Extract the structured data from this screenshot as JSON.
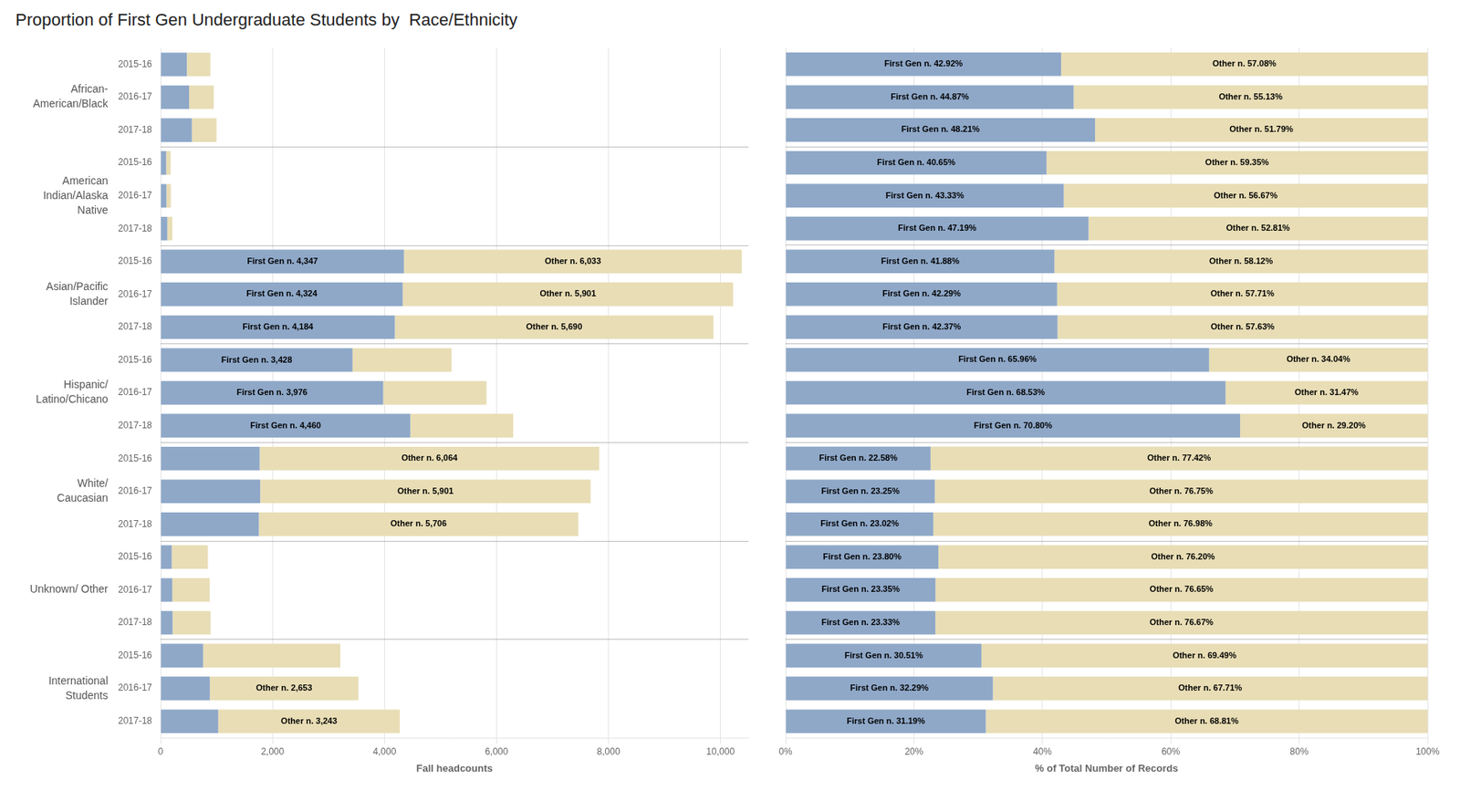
{
  "chart_data": [
    {
      "type": "bar",
      "title": "Proportion of First Gen Undergraduate Students by  Race/Ethnicity",
      "orientation": "horizontal",
      "stacked": true,
      "grid": true,
      "data_labels": true,
      "xlabel": "Fall headcounts",
      "groups": [
        {
          "label": "African-\nAmerican/Black",
          "categories": [
            "2015-16",
            "2016-17",
            "2017-18"
          ]
        },
        {
          "label": "American\nIndian/Alaska\nNative",
          "categories": [
            "2015-16",
            "2016-17",
            "2017-18"
          ]
        },
        {
          "label": "Asian/Pacific\nIslander",
          "categories": [
            "2015-16",
            "2016-17",
            "2017-18"
          ]
        },
        {
          "label": "Hispanic/\nLatino/Chicano",
          "categories": [
            "2015-16",
            "2016-17",
            "2017-18"
          ]
        },
        {
          "label": "White/\nCaucasian",
          "categories": [
            "2015-16",
            "2016-17",
            "2017-18"
          ]
        },
        {
          "label": "Unknown/ Other",
          "categories": [
            "2015-16",
            "2016-17",
            "2017-18"
          ]
        },
        {
          "label": "International\nStudents",
          "categories": [
            "2015-16",
            "2016-17",
            "2017-18"
          ]
        }
      ],
      "xlim": [
        0,
        10500
      ],
      "xticks": [
        0,
        {
          "value": 2000,
          "label": "2,000"
        },
        {
          "value": 4000,
          "label": "4,000"
        },
        {
          "value": 6000,
          "label": "6,000"
        },
        {
          "value": 8000,
          "label": "8,000"
        },
        {
          "value": 10000,
          "label": "10,000"
        }
      ],
      "series": [
        {
          "color": "#8fa8c8",
          "values": [
            470,
            510,
            560,
            100,
            105,
            120,
            4347,
            4324,
            4184,
            3428,
            3976,
            4460,
            1770,
            1780,
            1755,
            200,
            210,
            215,
            760,
            880,
            1030
          ],
          "value_labels": [
            null,
            null,
            null,
            null,
            null,
            null,
            "First Gen n. 4,347",
            "First Gen n. 4,324",
            "First Gen n. 4,184",
            "First Gen n. 3,428",
            "First Gen n. 3,976",
            "First Gen n. 4,460",
            null,
            null,
            null,
            null,
            null,
            null,
            null,
            null,
            null
          ]
        },
        {
          "color": "#e8ddb5",
          "values": [
            420,
            440,
            440,
            80,
            80,
            90,
            6033,
            5901,
            5690,
            1770,
            1845,
            1838,
            6064,
            5901,
            5706,
            645,
            668,
            678,
            2450,
            2653,
            3243
          ],
          "value_labels": [
            null,
            null,
            null,
            null,
            null,
            null,
            "Other n. 6,033",
            "Other n. 5,901",
            "Other n. 5,690",
            null,
            null,
            null,
            "Other n. 6,064",
            "Other n. 5,901",
            "Other n. 5,706",
            null,
            null,
            null,
            null,
            "Other n. 2,653",
            "Other n. 3,243"
          ]
        }
      ]
    },
    {
      "type": "bar",
      "orientation": "horizontal",
      "stacked": true,
      "grid": true,
      "data_labels": true,
      "tick_labels": "x",
      "xlabel": "% of Total Number of Records",
      "categories": [
        "2015-16",
        "2016-17",
        "2017-18",
        "2015-16",
        "2016-17",
        "2017-18",
        "2015-16",
        "2016-17",
        "2017-18",
        "2015-16",
        "2016-17",
        "2017-18",
        "2015-16",
        "2016-17",
        "2017-18",
        "2015-16",
        "2016-17",
        "2017-18",
        "2015-16",
        "2016-17",
        "2017-18"
      ],
      "xlim": [
        0,
        100
      ],
      "xticks": [
        {
          "value": 0,
          "label": "0%"
        },
        {
          "value": 20,
          "label": "20%"
        },
        {
          "value": 40,
          "label": "40%"
        },
        {
          "value": 60,
          "label": "60%"
        },
        {
          "value": 80,
          "label": "80%"
        },
        {
          "value": 100,
          "label": "100%"
        }
      ],
      "series": [
        {
          "color": "#8fa8c8",
          "values": [
            42.92,
            44.87,
            48.21,
            40.65,
            43.33,
            47.19,
            41.88,
            42.29,
            42.37,
            65.96,
            68.53,
            70.8,
            22.58,
            23.25,
            23.02,
            23.8,
            23.35,
            23.33,
            30.51,
            32.29,
            31.19
          ],
          "value_labels": [
            "First Gen n. 42.92%",
            "First Gen n. 44.87%",
            "First Gen n. 48.21%",
            "First Gen n. 40.65%",
            "First Gen n. 43.33%",
            "First Gen n. 47.19%",
            "First Gen n. 41.88%",
            "First Gen n. 42.29%",
            "First Gen n. 42.37%",
            "First Gen n. 65.96%",
            "First Gen n. 68.53%",
            "First Gen n. 70.80%",
            "First Gen n. 22.58%",
            "First Gen n. 23.25%",
            "First Gen n. 23.02%",
            "First Gen n. 23.80%",
            "First Gen n. 23.35%",
            "First Gen n. 23.33%",
            "First Gen n. 30.51%",
            "First Gen n. 32.29%",
            "First Gen n. 31.19%"
          ]
        },
        {
          "color": "#e8ddb5",
          "values": [
            57.08,
            55.13,
            51.79,
            59.35,
            56.67,
            52.81,
            58.12,
            57.71,
            57.63,
            34.04,
            31.47,
            29.2,
            77.42,
            76.75,
            76.98,
            76.2,
            76.65,
            76.67,
            69.49,
            67.71,
            68.81
          ],
          "value_labels": [
            "Other n. 57.08%",
            "Other n. 55.13%",
            "Other n. 51.79%",
            "Other n. 59.35%",
            "Other n. 56.67%",
            "Other n. 52.81%",
            "Other n. 58.12%",
            "Other n. 57.71%",
            "Other n. 57.63%",
            "Other n. 34.04%",
            "Other n. 31.47%",
            "Other n. 29.20%",
            "Other n. 77.42%",
            "Other n. 76.75%",
            "Other n. 76.98%",
            "Other n. 76.20%",
            "Other n. 76.65%",
            "Other n. 76.67%",
            "Other n. 69.49%",
            "Other n. 67.71%",
            "Other n. 68.81%"
          ]
        }
      ]
    }
  ]
}
